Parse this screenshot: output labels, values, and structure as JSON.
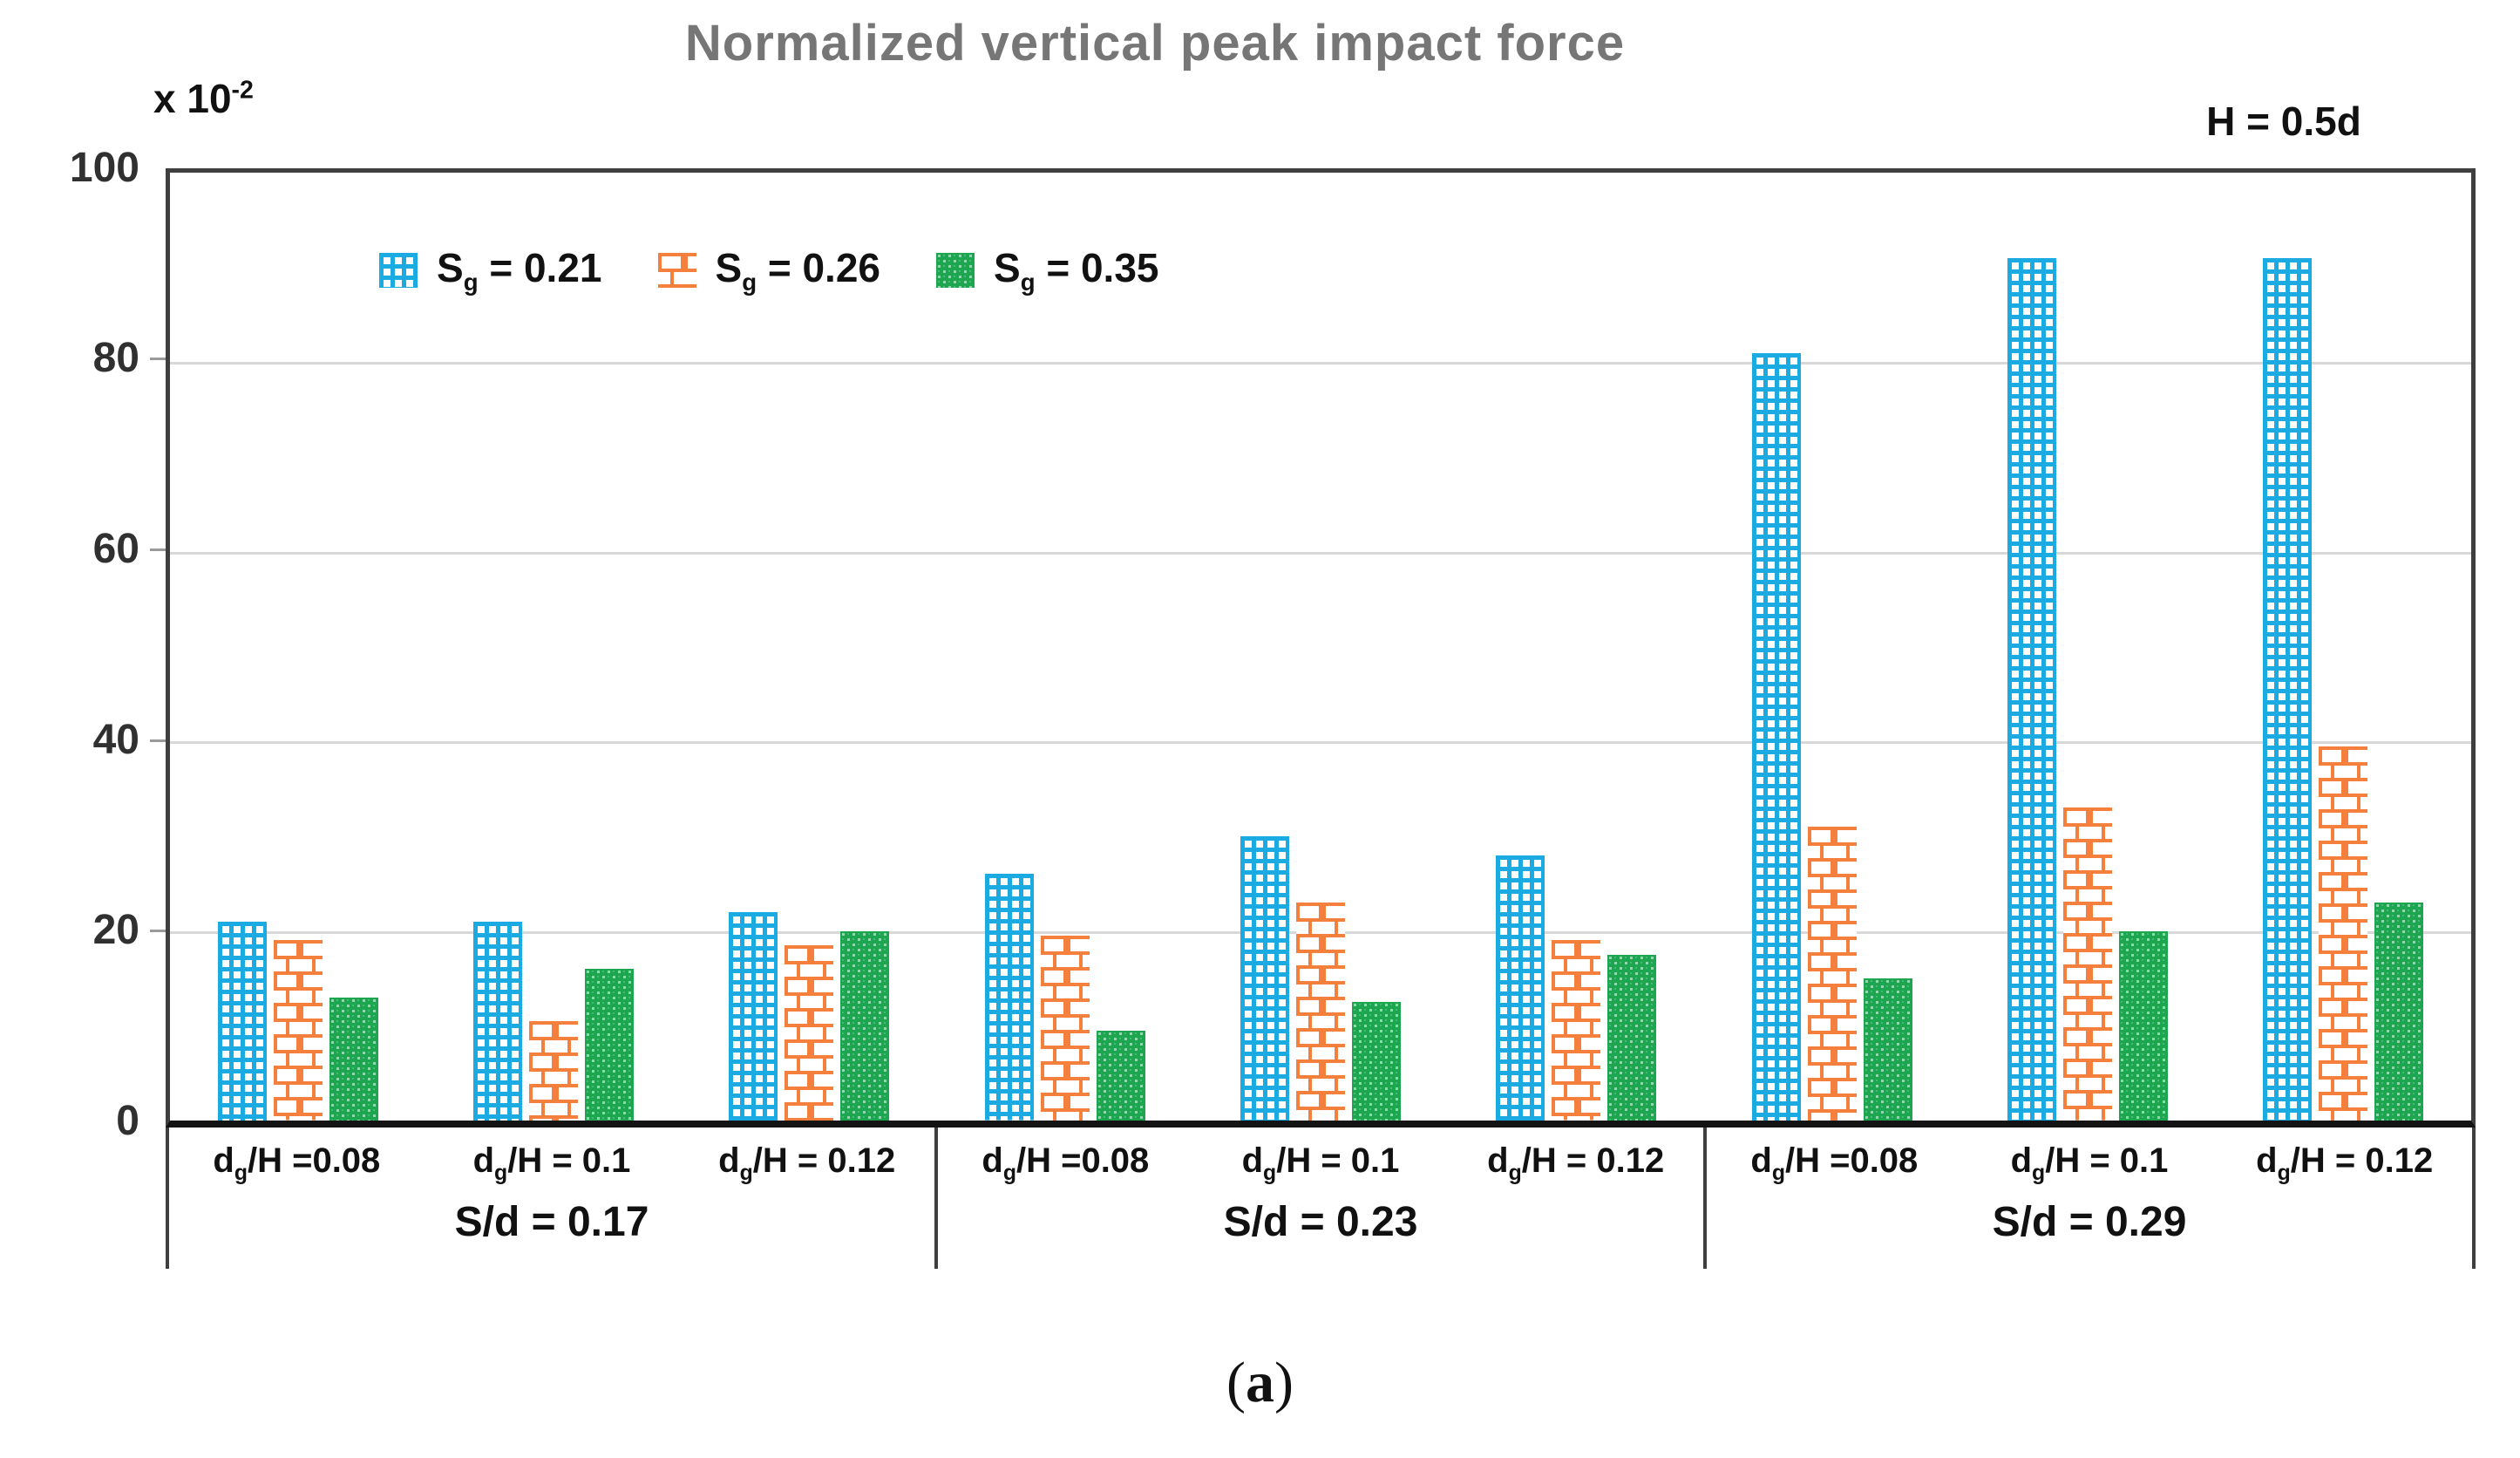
{
  "title": "Normalized vertical peak impact force",
  "condition_annotation": "H = 0.5d",
  "y_axis": {
    "multiplier_prefix": "x 10",
    "multiplier_exponent": "-2",
    "ticks": [
      "100",
      "80",
      "60",
      "40",
      "20",
      "0"
    ]
  },
  "legend": {
    "items": [
      {
        "pre": "S",
        "sub": "g",
        "post": " = 0.21",
        "color": "#1CAAE2",
        "pattern": "grid"
      },
      {
        "pre": "S",
        "sub": "g",
        "post": " = 0.26",
        "color": "#F5803E",
        "pattern": "brick"
      },
      {
        "pre": "S",
        "sub": "g",
        "post": " = 0.35",
        "color": "#1EA550",
        "pattern": "weave"
      }
    ]
  },
  "caption": {
    "open": "(",
    "letter": "a",
    "close": ")"
  },
  "chart_data": {
    "type": "bar",
    "title": "Normalized vertical peak impact force",
    "annotation": "H = 0.5d",
    "y_multiplier": "x 10^-2",
    "ylim": [
      0,
      100
    ],
    "ytick_step": 20,
    "grid": true,
    "legend_position": "top-left-inside",
    "series": [
      {
        "name": "Sg = 0.21",
        "color": "#1CAAE2",
        "pattern": "grid"
      },
      {
        "name": "Sg = 0.26",
        "color": "#F5803E",
        "pattern": "brick"
      },
      {
        "name": "Sg = 0.35",
        "color": "#1EA550",
        "pattern": "weave"
      }
    ],
    "groups": [
      {
        "label": "S/d = 0.17",
        "clusters": [
          {
            "label_pre": "d",
            "label_sub": "g",
            "label_post": "/H =0.08",
            "values": [
              21,
              19,
              13
            ]
          },
          {
            "label_pre": "d",
            "label_sub": "g",
            "label_post": "/H = 0.1",
            "values": [
              21,
              10.5,
              16
            ]
          },
          {
            "label_pre": "d",
            "label_sub": "g",
            "label_post": "/H = 0.12",
            "values": [
              22,
              18.5,
              20
            ]
          }
        ]
      },
      {
        "label": "S/d = 0.23",
        "clusters": [
          {
            "label_pre": "d",
            "label_sub": "g",
            "label_post": "/H =0.08",
            "values": [
              26,
              19.5,
              9.5
            ]
          },
          {
            "label_pre": "d",
            "label_sub": "g",
            "label_post": "/H = 0.1",
            "values": [
              30,
              23,
              12.5
            ]
          },
          {
            "label_pre": "d",
            "label_sub": "g",
            "label_post": "/H = 0.12",
            "values": [
              28,
              19,
              17.5
            ]
          }
        ]
      },
      {
        "label": "S/d = 0.29",
        "clusters": [
          {
            "label_pre": "d",
            "label_sub": "g",
            "label_post": "/H =0.08",
            "values": [
              81,
              31,
              15
            ]
          },
          {
            "label_pre": "d",
            "label_sub": "g",
            "label_post": "/H = 0.1",
            "values": [
              91,
              33,
              20
            ]
          },
          {
            "label_pre": "d",
            "label_sub": "g",
            "label_post": "/H = 0.12",
            "values": [
              91,
              39.5,
              23
            ]
          }
        ]
      }
    ]
  }
}
